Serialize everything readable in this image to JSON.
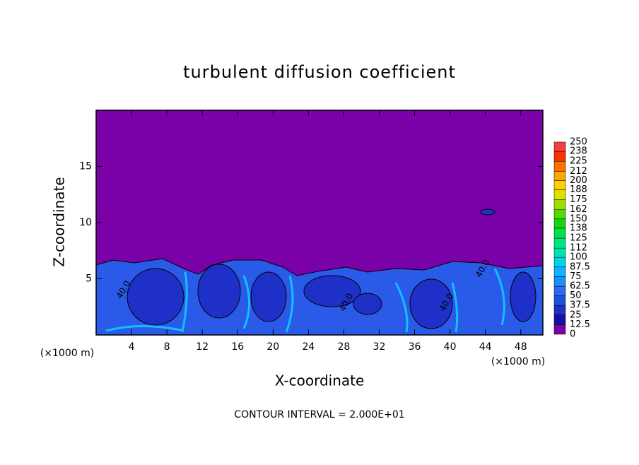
{
  "chart_data": {
    "type": "contour",
    "title": "turbulent diffusion coefficient",
    "x_label": "X-coordinate",
    "y_label": "Z-coordinate",
    "x_unit": "(×1000 m)",
    "xlim": [
      0,
      50.5
    ],
    "xticks": [
      4,
      8,
      12,
      16,
      20,
      24,
      28,
      32,
      36,
      40,
      44,
      48
    ],
    "ylim": [
      0,
      20
    ],
    "yticks": [
      5,
      10,
      15
    ],
    "colorbar": {
      "levels": [
        0,
        12.5,
        25,
        37.5,
        50,
        62.5,
        75,
        87.5,
        100,
        112,
        125,
        138,
        150,
        162,
        175,
        188,
        200,
        212,
        225,
        238,
        250
      ],
      "colors": [
        "#7a00a8",
        "#1a10a0",
        "#1f30c8",
        "#2050e0",
        "#2a6cf0",
        "#1590ff",
        "#10b4ff",
        "#00d4e8",
        "#00e4b4",
        "#00e484",
        "#00e048",
        "#10d810",
        "#50dc00",
        "#9ce000",
        "#e0e000",
        "#ffd000",
        "#ffa800",
        "#ff7000",
        "#ff3000",
        "#f04040"
      ]
    },
    "contour_labels": [
      {
        "value": 40,
        "label": "40.0"
      },
      {
        "value": 40,
        "label": "40.0"
      },
      {
        "value": 40,
        "label": "40.0"
      },
      {
        "value": 40,
        "label": "40.0"
      }
    ],
    "note": "CONTOUR INTERVAL = 2.000E+01"
  }
}
